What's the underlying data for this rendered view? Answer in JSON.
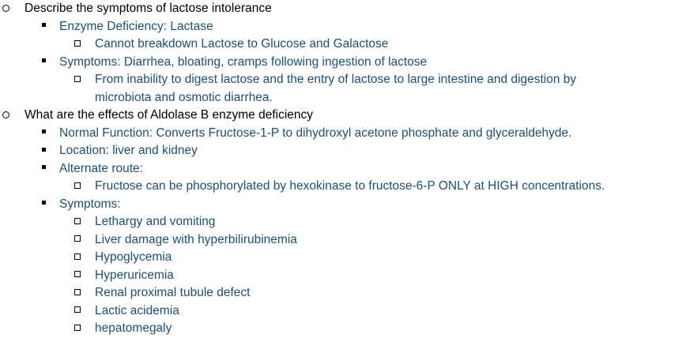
{
  "outline": [
    {
      "level": 1,
      "text": "Describe the symptoms of lactose intolerance"
    },
    {
      "level": 2,
      "text": "Enzyme Deficiency: Lactase"
    },
    {
      "level": 3,
      "text": "Cannot breakdown Lactose to Glucose and Galactose"
    },
    {
      "level": 2,
      "text": "Symptoms: Diarrhea, bloating, cramps following ingestion of lactose"
    },
    {
      "level": 3,
      "text": "From inability to digest lactose and the entry of lactose to large intestine and digestion by",
      "continuation": "microbiota and osmotic diarrhea."
    },
    {
      "level": 1,
      "text": "What are the effects of Aldolase B enzyme deficiency"
    },
    {
      "level": 2,
      "text": "Normal Function: Converts Fructose-1-P to dihydroxyl acetone phosphate and glyceraldehyde."
    },
    {
      "level": 2,
      "text": "Location: liver and kidney"
    },
    {
      "level": 2,
      "text": "Alternate route:"
    },
    {
      "level": 3,
      "text": "Fructose can be phosphorylated by hexokinase to fructose-6-P ONLY at HIGH concentrations."
    },
    {
      "level": 2,
      "text": "Symptoms:"
    },
    {
      "level": 3,
      "text": "Lethargy and vomiting"
    },
    {
      "level": 3,
      "text": "Liver damage with hyperbilirubinemia"
    },
    {
      "level": 3,
      "text": "Hypoglycemia"
    },
    {
      "level": 3,
      "text": "Hyperuricemia"
    },
    {
      "level": 3,
      "text": "Renal proximal tubule defect"
    },
    {
      "level": 3,
      "text": "Lactic acidemia"
    },
    {
      "level": 3,
      "text": "hepatomegaly"
    }
  ],
  "colors": {
    "question_text": "#000000",
    "answer_text": "#1f4e79"
  },
  "bullets": {
    "level1": "hollow-circle",
    "level2": "filled-square",
    "level3": "hollow-square"
  }
}
